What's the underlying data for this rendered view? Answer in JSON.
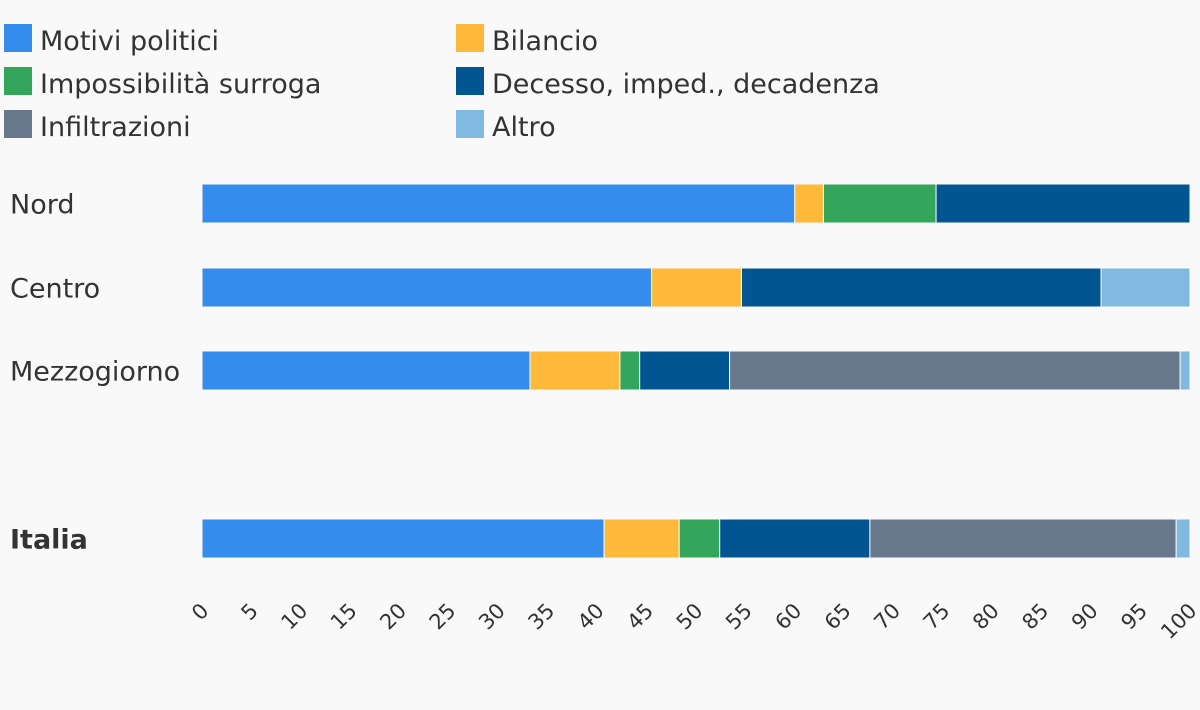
{
  "chart_data": {
    "type": "bar",
    "orientation": "horizontal",
    "stacked": true,
    "categories": [
      "Nord",
      "Centro",
      "Mezzogiorno",
      "Italia"
    ],
    "bold_categories": [
      "Italia"
    ],
    "series": [
      {
        "name": "Motivi politici",
        "color": "#348CED",
        "values": [
          60,
          45.5,
          33.2,
          40.7
        ]
      },
      {
        "name": "Bilancio",
        "color": "#FFB93A",
        "values": [
          2.9,
          9.1,
          9.1,
          7.6
        ]
      },
      {
        "name": "Impossibilità surroga",
        "color": "#34A65C",
        "values": [
          11.4,
          0,
          2.0,
          4.1
        ]
      },
      {
        "name": "Decesso, imped., decadenza",
        "color": "#015591",
        "values": [
          25.7,
          36.4,
          9.1,
          15.2
        ]
      },
      {
        "name": "Infiltrazioni",
        "color": "#68788D",
        "values": [
          0,
          0,
          45.6,
          31.0
        ]
      },
      {
        "name": "Altro",
        "color": "#80BAE0",
        "values": [
          0,
          9.0,
          1.0,
          1.4
        ]
      }
    ],
    "xlim": [
      0,
      100
    ],
    "x_ticks": [
      0,
      5,
      10,
      15,
      20,
      25,
      30,
      35,
      40,
      45,
      50,
      55,
      60,
      65,
      70,
      75,
      80,
      85,
      90,
      95,
      100
    ],
    "legend_position": "top-left",
    "grid": false,
    "title": "",
    "xlabel": "",
    "ylabel": ""
  }
}
